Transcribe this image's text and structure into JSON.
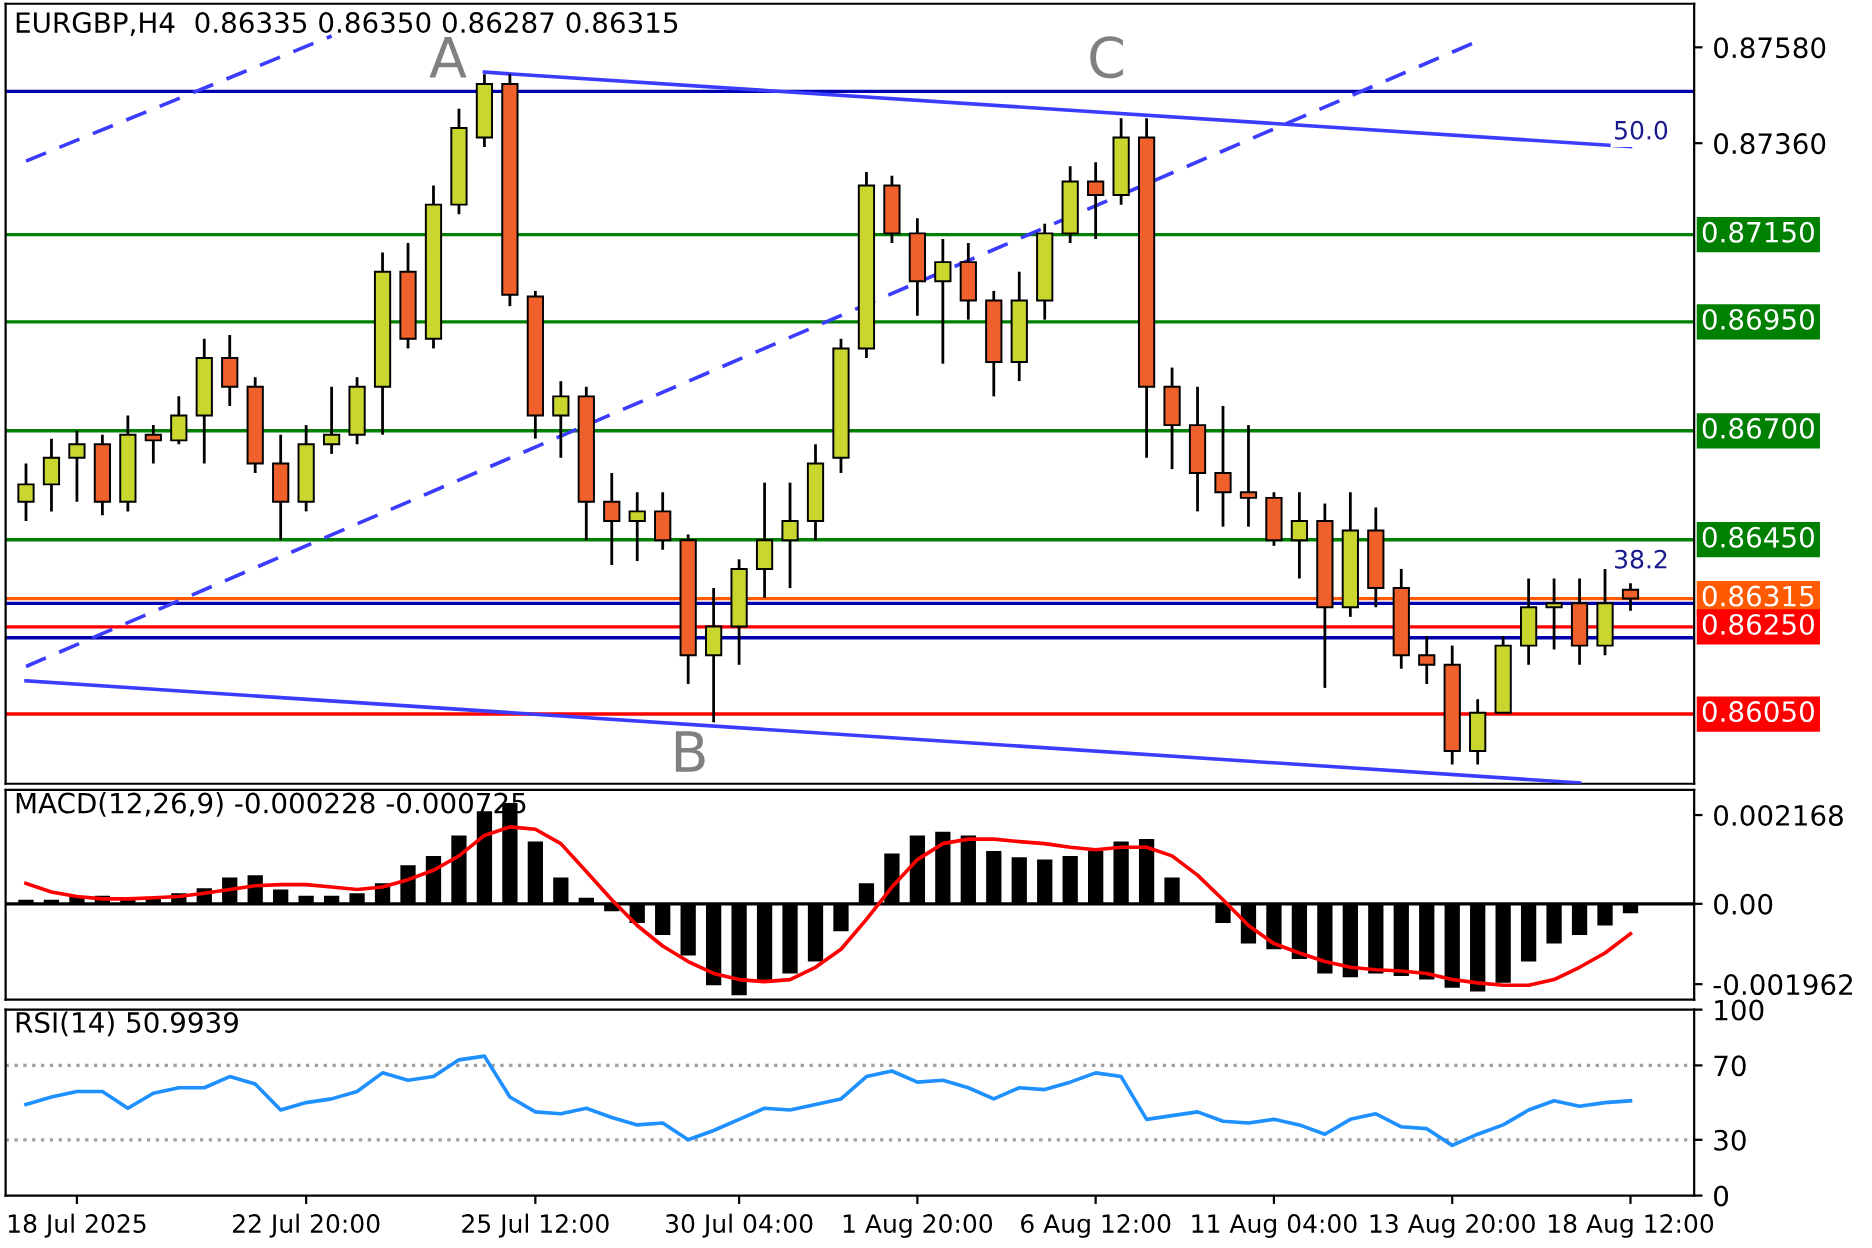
{
  "chart_data": [
    {
      "type": "candlestick",
      "title": "EURGBP,H4  0.86335 0.86350 0.86287 0.86315",
      "categories": [
        null,
        null,
        null,
        null,
        null,
        null,
        null,
        null,
        null,
        null,
        null,
        null,
        null,
        null,
        null,
        null,
        null,
        null,
        null,
        null,
        null,
        null,
        null,
        null,
        null,
        null,
        null,
        null,
        null,
        null,
        null,
        null,
        null,
        null,
        null,
        null,
        null,
        null,
        null,
        null,
        null,
        null,
        null,
        null,
        null,
        null,
        null,
        null,
        null,
        null,
        null,
        null,
        null,
        null,
        null,
        null,
        null,
        null,
        null,
        null,
        null,
        null,
        null,
        null
      ],
      "ohlc": [
        [
          0.86537,
          0.86625,
          0.86493,
          0.86577
        ],
        [
          0.86577,
          0.86682,
          0.86515,
          0.86638
        ],
        [
          0.86638,
          0.867,
          0.86537,
          0.86669
        ],
        [
          0.86669,
          0.86691,
          0.86506,
          0.86537
        ],
        [
          0.86537,
          0.86735,
          0.86515,
          0.86691
        ],
        [
          0.86691,
          0.86713,
          0.86625,
          0.86678
        ],
        [
          0.86678,
          0.86779,
          0.86669,
          0.86735
        ],
        [
          0.86735,
          0.86911,
          0.86625,
          0.86867
        ],
        [
          0.86867,
          0.8692,
          0.86757,
          0.86801
        ],
        [
          0.86801,
          0.86823,
          0.86603,
          0.86625
        ],
        [
          0.86625,
          0.86691,
          0.86449,
          0.86537
        ],
        [
          0.86537,
          0.86713,
          0.86515,
          0.86669
        ],
        [
          0.86669,
          0.86801,
          0.86647,
          0.86691
        ],
        [
          0.86691,
          0.86823,
          0.86669,
          0.86801
        ],
        [
          0.86801,
          0.87109,
          0.86691,
          0.87065
        ],
        [
          0.87065,
          0.87131,
          0.86889,
          0.86911
        ],
        [
          0.86911,
          0.87263,
          0.86889,
          0.87219
        ],
        [
          0.87219,
          0.87439,
          0.87197,
          0.87395
        ],
        [
          0.87373,
          0.87518,
          0.87351,
          0.87496
        ],
        [
          0.87496,
          0.87518,
          0.86986,
          0.87012
        ],
        [
          0.87008,
          0.87021,
          0.86682,
          0.86735
        ],
        [
          0.86735,
          0.86814,
          0.86638,
          0.86779
        ],
        [
          0.86779,
          0.86801,
          0.86449,
          0.86537
        ],
        [
          0.86537,
          0.86603,
          0.86392,
          0.86493
        ],
        [
          0.86493,
          0.86559,
          0.86401,
          0.86515
        ],
        [
          0.86515,
          0.86559,
          0.86427,
          0.86449
        ],
        [
          0.86449,
          0.86462,
          0.86119,
          0.86185
        ],
        [
          0.86185,
          0.86339,
          0.86031,
          0.86251
        ],
        [
          0.86251,
          0.86405,
          0.86163,
          0.86383
        ],
        [
          0.86383,
          0.86581,
          0.86317,
          0.86449
        ],
        [
          0.86449,
          0.86581,
          0.86339,
          0.86493
        ],
        [
          0.86493,
          0.86669,
          0.86449,
          0.86625
        ],
        [
          0.86638,
          0.86911,
          0.86603,
          0.86889
        ],
        [
          0.86889,
          0.87294,
          0.86867,
          0.87263
        ],
        [
          0.87263,
          0.87285,
          0.87131,
          0.87153
        ],
        [
          0.87153,
          0.87188,
          0.86964,
          0.87043
        ],
        [
          0.87043,
          0.8714,
          0.86854,
          0.87087
        ],
        [
          0.87087,
          0.87131,
          0.86955,
          0.86999
        ],
        [
          0.86999,
          0.87021,
          0.86779,
          0.86858
        ],
        [
          0.86858,
          0.87065,
          0.86814,
          0.86999
        ],
        [
          0.86999,
          0.87175,
          0.86955,
          0.87153
        ],
        [
          0.87153,
          0.87307,
          0.87131,
          0.87272
        ],
        [
          0.87272,
          0.87316,
          0.8714,
          0.87241
        ],
        [
          0.87241,
          0.87417,
          0.87219,
          0.87373
        ],
        [
          0.87373,
          0.87417,
          0.86638,
          0.86801
        ],
        [
          0.86801,
          0.86845,
          0.86612,
          0.86713
        ],
        [
          0.86713,
          0.86801,
          0.86515,
          0.86603
        ],
        [
          0.86603,
          0.86757,
          0.8648,
          0.86559
        ],
        [
          0.86559,
          0.86713,
          0.8648,
          0.86546
        ],
        [
          0.86546,
          0.86559,
          0.86436,
          0.86449
        ],
        [
          0.86449,
          0.86559,
          0.86361,
          0.86493
        ],
        [
          0.86493,
          0.86533,
          0.8611,
          0.86295
        ],
        [
          0.86295,
          0.86559,
          0.86273,
          0.86471
        ],
        [
          0.86471,
          0.86524,
          0.86295,
          0.86339
        ],
        [
          0.86339,
          0.86383,
          0.86154,
          0.86185
        ],
        [
          0.86185,
          0.86229,
          0.86119,
          0.86163
        ],
        [
          0.86163,
          0.86207,
          0.85934,
          0.85965
        ],
        [
          0.85965,
          0.86084,
          0.85934,
          0.86053
        ],
        [
          0.86053,
          0.86229,
          0.86053,
          0.86207
        ],
        [
          0.86207,
          0.86361,
          0.86163,
          0.86295
        ],
        [
          0.86295,
          0.86361,
          0.86198,
          0.86304
        ],
        [
          0.86304,
          0.86361,
          0.86163,
          0.86207
        ],
        [
          0.86207,
          0.86383,
          0.86185,
          0.86304
        ],
        [
          0.86335,
          0.8635,
          0.86287,
          0.86315
        ]
      ],
      "colors": [
        "#c8d62e",
        "#c8d62e",
        "#c8d62e",
        "#f0602a",
        "#c8d62e",
        "#f0602a",
        "#c8d62e",
        "#c8d62e",
        "#f0602a",
        "#f0602a",
        "#f0602a",
        "#c8d62e",
        "#c8d62e",
        "#c8d62e",
        "#c8d62e",
        "#f0602a",
        "#c8d62e",
        "#c8d62e",
        "#c8d62e",
        "#f0602a",
        "#f0602a",
        "#c8d62e",
        "#f0602a",
        "#f0602a",
        "#c8d62e",
        "#f0602a",
        "#f0602a",
        "#c8d62e",
        "#c8d62e",
        "#c8d62e",
        "#c8d62e",
        "#c8d62e",
        "#c8d62e",
        "#c8d62e",
        "#f0602a",
        "#f0602a",
        "#c8d62e",
        "#f0602a",
        "#f0602a",
        "#c8d62e",
        "#c8d62e",
        "#c8d62e",
        "#f0602a",
        "#c8d62e",
        "#f0602a",
        "#f0602a",
        "#f0602a",
        "#f0602a",
        "#f0602a",
        "#f0602a",
        "#c8d62e",
        "#f0602a",
        "#c8d62e",
        "#f0602a",
        "#f0602a",
        "#f0602a",
        "#f0602a",
        "#c8d62e",
        "#c8d62e",
        "#c8d62e",
        "#c8d62e",
        "#f0602a",
        "#c8d62e",
        "#f0602a"
      ],
      "series": [
        {
          "type": "line",
          "color": "#3c3cff",
          "line_style": "solid",
          "values": [
            null,
            null,
            null,
            null,
            null,
            null,
            null,
            null,
            null,
            null,
            null,
            null,
            null,
            null,
            null,
            null,
            null,
            null,
            0.87523,
            null,
            null,
            null,
            null,
            null,
            null,
            null,
            null,
            null,
            null,
            null,
            null,
            null,
            null,
            null,
            null,
            null,
            null,
            null,
            null,
            null,
            null,
            null,
            null,
            null,
            null,
            null,
            null,
            null,
            null,
            null,
            null,
            null,
            null,
            null,
            null,
            null,
            null,
            null,
            null,
            null,
            null,
            null,
            null,
            0.87352
          ]
        },
        {
          "type": "line",
          "color": "#3c3cff",
          "line_style": "solid",
          "values": [
            0.86126,
            null,
            null,
            null,
            null,
            null,
            null,
            null,
            null,
            null,
            null,
            null,
            null,
            null,
            null,
            null,
            null,
            null,
            null,
            null,
            null,
            null,
            null,
            null,
            null,
            null,
            null,
            null,
            null,
            null,
            null,
            null,
            null,
            null,
            null,
            null,
            null,
            null,
            null,
            null,
            null,
            null,
            null,
            null,
            null,
            null,
            null,
            null,
            null,
            null,
            null,
            null,
            null,
            null,
            null,
            null,
            null,
            null,
            null,
            null,
            null,
            0.85892,
            null,
            null
          ]
        },
        {
          "type": "line",
          "color": "#3c3cff",
          "line_style": "dashed",
          "values": [
            0.86159,
            null,
            null,
            null,
            null,
            null,
            null,
            null,
            null,
            null,
            null,
            null,
            null,
            null,
            null,
            null,
            null,
            null,
            null,
            null,
            null,
            null,
            null,
            null,
            null,
            null,
            null,
            null,
            null,
            null,
            null,
            null,
            null,
            null,
            null,
            null,
            null,
            null,
            null,
            null,
            null,
            null,
            null,
            null,
            null,
            null,
            null,
            null,
            null,
            null,
            null,
            null,
            null,
            null,
            null,
            null,
            null,
            0.87594,
            null,
            null,
            null,
            null,
            null,
            null
          ]
        },
        {
          "type": "line",
          "color": "#3c3cff",
          "line_style": "dashed",
          "values": [
            0.87319,
            null,
            null,
            null,
            null,
            null,
            null,
            null,
            null,
            null,
            null,
            null,
            0.87606,
            null,
            null,
            null,
            null,
            null,
            null,
            null,
            null,
            null,
            null,
            null,
            null,
            null,
            null,
            null,
            null,
            null,
            null,
            null,
            null,
            null,
            null,
            null,
            null,
            null,
            null,
            null,
            null,
            null,
            null,
            null,
            null,
            null,
            null,
            null,
            null,
            null,
            null,
            null,
            null,
            null,
            null,
            null,
            null,
            null,
            null,
            null,
            null,
            null,
            null,
            null
          ]
        }
      ],
      "ref_lines": [
        {
          "axis": "y",
          "value": 0.8715,
          "label": "0.87150",
          "color": "#008000"
        },
        {
          "axis": "y",
          "value": 0.8695,
          "label": "0.86950",
          "color": "#008000"
        },
        {
          "axis": "y",
          "value": 0.867,
          "label": "0.86700",
          "color": "#008000"
        },
        {
          "axis": "y",
          "value": 0.8645,
          "label": "0.86450",
          "color": "#008000"
        },
        {
          "axis": "y",
          "value": 0.86315,
          "label": "0.86315",
          "color": "#ff5a00"
        },
        {
          "axis": "y",
          "value": 0.8625,
          "label": "0.86250",
          "color": "#ff0000"
        },
        {
          "axis": "y",
          "value": 0.8605,
          "label": "0.86050",
          "color": "#ff0000"
        },
        {
          "axis": "y",
          "value": 0.87479,
          "color": "#0000b0"
        },
        {
          "axis": "y",
          "value": 0.86304,
          "color": "#0000b0"
        },
        {
          "axis": "y",
          "value": 0.86225,
          "color": "#0000b0"
        }
      ],
      "annotations": [
        "A",
        "B",
        "C",
        "50.0",
        "38.2"
      ],
      "ylim": [
        0.8589,
        0.8768
      ],
      "yticks": [
        {
          "value": 0.8758,
          "label": "0.87580"
        },
        {
          "value": 0.8736,
          "label": "0.87360"
        }
      ],
      "tick_labels": "y",
      "grid": false,
      "legend": false
    },
    {
      "type": "bar",
      "title": "MACD(12,26,9) -0.000228 -0.000725",
      "categories": [
        null,
        null,
        null,
        null,
        null,
        null,
        null,
        null,
        null,
        null,
        null,
        null,
        null,
        null,
        null,
        null,
        null,
        null,
        null,
        null,
        null,
        null,
        null,
        null,
        null,
        null,
        null,
        null,
        null,
        null,
        null,
        null,
        null,
        null,
        null,
        null,
        null,
        null,
        null,
        null,
        null,
        null,
        null,
        null,
        null,
        null,
        null,
        null,
        null,
        null,
        null,
        null,
        null,
        null,
        null,
        null,
        null,
        null,
        null,
        null,
        null,
        null,
        null,
        null
      ],
      "series": [
        {
          "type": "bar",
          "color": "#000000",
          "values": [
            0.0001,
            0.0001,
            0.00018,
            0.0002,
            0.00012,
            0.00015,
            0.00026,
            0.00038,
            0.00064,
            0.0007,
            0.00035,
            0.0002,
            0.0002,
            0.00026,
            0.0005,
            0.00094,
            0.00117,
            0.00167,
            0.00226,
            0.00246,
            0.00152,
            0.00064,
            0.00015,
            -0.00018,
            -0.00047,
            -0.00076,
            -0.00126,
            -0.00199,
            -0.00223,
            -0.00193,
            -0.0017,
            -0.00141,
            -0.00067,
            0.0005,
            0.00123,
            0.00167,
            0.00176,
            0.00167,
            0.00129,
            0.00114,
            0.00108,
            0.00117,
            0.00129,
            0.00152,
            0.00158,
            0.00064,
            0,
            -0.00047,
            -0.00097,
            -0.00111,
            -0.00135,
            -0.0017,
            -0.00179,
            -0.0017,
            -0.00176,
            -0.00185,
            -0.00205,
            -0.00214,
            -0.00193,
            -0.00141,
            -0.00097,
            -0.00076,
            -0.00053,
            -0.00023
          ]
        },
        {
          "type": "line",
          "color": "#ff0000",
          "line_style": "solid",
          "values": [
            0.0005,
            0.00029,
            0.00018,
            0.00012,
            0.00012,
            0.00015,
            0.00018,
            0.00026,
            0.00035,
            0.00044,
            0.00047,
            0.00047,
            0.00041,
            0.00035,
            0.00041,
            0.00059,
            0.00082,
            0.00117,
            0.00167,
            0.00188,
            0.00182,
            0.00147,
            0.00079,
            0.0001,
            -0.00053,
            -0.00103,
            -0.00141,
            -0.0017,
            -0.00185,
            -0.0019,
            -0.00185,
            -0.00155,
            -0.00111,
            -0.00038,
            0.00041,
            0.00108,
            0.00147,
            0.00158,
            0.00158,
            0.00152,
            0.00147,
            0.00138,
            0.00132,
            0.00138,
            0.00138,
            0.00117,
            0.0007,
            0.0001,
            -0.00053,
            -0.00097,
            -0.0012,
            -0.00141,
            -0.00155,
            -0.00161,
            -0.00164,
            -0.0017,
            -0.00185,
            -0.00193,
            -0.00199,
            -0.00199,
            -0.00185,
            -0.00155,
            -0.0012,
            -0.00073
          ]
        }
      ],
      "ref_lines": [
        {
          "axis": "y",
          "value": 0,
          "color": "#000000"
        }
      ],
      "ylim": [
        -0.00234,
        0.00278
      ],
      "yticks": [
        {
          "value": 0.002168,
          "label": "0.002168"
        },
        {
          "value": 0,
          "label": "0.00"
        },
        {
          "value": -0.001962,
          "label": "-0.001962"
        }
      ],
      "tick_labels": "y",
      "grid": false,
      "legend": false
    },
    {
      "type": "line",
      "title": "RSI(14) 50.9939",
      "categories": [
        null,
        null,
        "18 Jul 2025",
        null,
        null,
        null,
        null,
        null,
        null,
        null,
        null,
        "22 Jul 20:00",
        null,
        null,
        null,
        null,
        null,
        null,
        null,
        null,
        "25 Jul 12:00",
        null,
        null,
        null,
        null,
        null,
        null,
        null,
        "30 Jul 04:00",
        null,
        null,
        null,
        null,
        null,
        null,
        "1 Aug 20:00",
        null,
        null,
        null,
        null,
        null,
        null,
        "6 Aug 12:00",
        null,
        null,
        null,
        null,
        null,
        null,
        "11 Aug 04:00",
        null,
        null,
        null,
        null,
        null,
        null,
        "13 Aug 20:00",
        null,
        null,
        null,
        null,
        null,
        null,
        "18 Aug 12:00"
      ],
      "series": [
        {
          "type": "line",
          "color": "#1e90ff",
          "line_style": "solid",
          "values": [
            49,
            53,
            56,
            56,
            47,
            55,
            58,
            58,
            64,
            60,
            46,
            50,
            52,
            56,
            66,
            62,
            64,
            73,
            75,
            53,
            45,
            44,
            47,
            42,
            38,
            39,
            30,
            35,
            41,
            47,
            46,
            49,
            52,
            64,
            67,
            61,
            62,
            58,
            52,
            58,
            57,
            61,
            66,
            64,
            41,
            43,
            45,
            40,
            39,
            41,
            38,
            33,
            41,
            44,
            37,
            36,
            27,
            33,
            38,
            46,
            51,
            48,
            50,
            51
          ]
        }
      ],
      "ref_lines": [
        {
          "axis": "y",
          "value": 70,
          "color": "#a0a0a0",
          "line_style": "dotted"
        },
        {
          "axis": "y",
          "value": 30,
          "color": "#a0a0a0",
          "line_style": "dotted"
        }
      ],
      "ylim": [
        0,
        100
      ],
      "yticks": [
        100,
        70,
        30,
        0
      ],
      "grid": false,
      "legend": false
    }
  ]
}
